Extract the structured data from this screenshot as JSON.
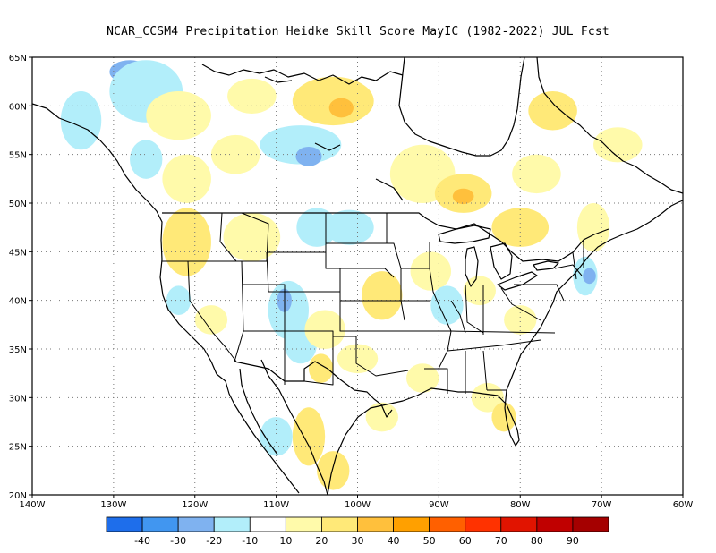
{
  "title": "NCAR_CCSM4  Precipitation Heidke Skill Score MayIC (1982-2022) JUL Fcst",
  "map": {
    "projection": "lat-lon",
    "lon_range": [
      -140,
      -60
    ],
    "lat_range": [
      20,
      65
    ],
    "gridlines": "dotted",
    "lon_ticks": [
      {
        "value": -140,
        "label": "140W"
      },
      {
        "value": -130,
        "label": "130W"
      },
      {
        "value": -120,
        "label": "120W"
      },
      {
        "value": -110,
        "label": "110W"
      },
      {
        "value": -100,
        "label": "100W"
      },
      {
        "value": -90,
        "label": "90W"
      },
      {
        "value": -80,
        "label": "80W"
      },
      {
        "value": -70,
        "label": "70W"
      },
      {
        "value": -60,
        "label": "60W"
      }
    ],
    "lat_ticks": [
      {
        "value": 65,
        "label": "65N"
      },
      {
        "value": 60,
        "label": "60N"
      },
      {
        "value": 55,
        "label": "55N"
      },
      {
        "value": 50,
        "label": "50N"
      },
      {
        "value": 45,
        "label": "45N"
      },
      {
        "value": 40,
        "label": "40N"
      },
      {
        "value": 35,
        "label": "35N"
      },
      {
        "value": 30,
        "label": "30N"
      },
      {
        "value": 25,
        "label": "25N"
      },
      {
        "value": 20,
        "label": "20N"
      }
    ],
    "patches": [
      {
        "lon": -128,
        "lat": 63.5,
        "rx": 2.5,
        "ry": 1.2,
        "color": "#7fb2f0"
      },
      {
        "lon": -126,
        "lat": 61.5,
        "rx": 4.5,
        "ry": 3.2,
        "color": "#b2eefa"
      },
      {
        "lon": -134,
        "lat": 58.5,
        "rx": 2.5,
        "ry": 3,
        "color": "#b2eefa"
      },
      {
        "lon": -122,
        "lat": 59,
        "rx": 4,
        "ry": 2.5,
        "color": "#fffaaa"
      },
      {
        "lon": -113,
        "lat": 61,
        "rx": 3,
        "ry": 1.8,
        "color": "#fffaaa"
      },
      {
        "lon": -103,
        "lat": 60.5,
        "rx": 5,
        "ry": 2.5,
        "color": "#ffe978"
      },
      {
        "lon": -102,
        "lat": 59.8,
        "rx": 1.5,
        "ry": 1,
        "color": "#ffc03c"
      },
      {
        "lon": -107,
        "lat": 56,
        "rx": 5,
        "ry": 2,
        "color": "#b2eefa"
      },
      {
        "lon": -106,
        "lat": 54.8,
        "rx": 1.6,
        "ry": 1,
        "color": "#7fb2f0"
      },
      {
        "lon": -115,
        "lat": 55,
        "rx": 3,
        "ry": 2,
        "color": "#fffaaa"
      },
      {
        "lon": -121,
        "lat": 52.5,
        "rx": 3,
        "ry": 2.5,
        "color": "#fffaaa"
      },
      {
        "lon": -126,
        "lat": 54.5,
        "rx": 2,
        "ry": 2,
        "color": "#b2eefa"
      },
      {
        "lon": -92,
        "lat": 53,
        "rx": 4,
        "ry": 3,
        "color": "#fffaaa"
      },
      {
        "lon": -87,
        "lat": 51,
        "rx": 3.5,
        "ry": 2,
        "color": "#ffe978"
      },
      {
        "lon": -87,
        "lat": 50.7,
        "rx": 1.3,
        "ry": 0.8,
        "color": "#ffc03c"
      },
      {
        "lon": -80,
        "lat": 47.5,
        "rx": 3.5,
        "ry": 2,
        "color": "#ffe978"
      },
      {
        "lon": -76,
        "lat": 59.5,
        "rx": 3,
        "ry": 2,
        "color": "#ffe978"
      },
      {
        "lon": -68,
        "lat": 56,
        "rx": 3,
        "ry": 1.8,
        "color": "#fffaaa"
      },
      {
        "lon": -78,
        "lat": 53,
        "rx": 3,
        "ry": 2,
        "color": "#fffaaa"
      },
      {
        "lon": -71,
        "lat": 47.5,
        "rx": 2,
        "ry": 2.5,
        "color": "#fffaaa"
      },
      {
        "lon": -121,
        "lat": 46,
        "rx": 3,
        "ry": 3.5,
        "color": "#ffe978"
      },
      {
        "lon": -113,
        "lat": 46.5,
        "rx": 3.5,
        "ry": 2.5,
        "color": "#fffaaa"
      },
      {
        "lon": -105,
        "lat": 47.5,
        "rx": 2.5,
        "ry": 2,
        "color": "#b2eefa"
      },
      {
        "lon": -101,
        "lat": 47.5,
        "rx": 3,
        "ry": 1.8,
        "color": "#b2eefa"
      },
      {
        "lon": -108.5,
        "lat": 39,
        "rx": 2.5,
        "ry": 3,
        "color": "#b2eefa"
      },
      {
        "lon": -109,
        "lat": 40,
        "rx": 0.9,
        "ry": 1.2,
        "color": "#7fb2f0"
      },
      {
        "lon": -107,
        "lat": 35.5,
        "rx": 2,
        "ry": 2,
        "color": "#b2eefa"
      },
      {
        "lon": -104.5,
        "lat": 33,
        "rx": 1.5,
        "ry": 1.5,
        "color": "#ffe978"
      },
      {
        "lon": -97,
        "lat": 40.5,
        "rx": 2.5,
        "ry": 2.5,
        "color": "#ffe978"
      },
      {
        "lon": -104,
        "lat": 37,
        "rx": 2.5,
        "ry": 2,
        "color": "#fffaaa"
      },
      {
        "lon": -100,
        "lat": 34,
        "rx": 2.5,
        "ry": 1.5,
        "color": "#fffaaa"
      },
      {
        "lon": -91,
        "lat": 43,
        "rx": 2.5,
        "ry": 2,
        "color": "#fffaaa"
      },
      {
        "lon": -89,
        "lat": 39.5,
        "rx": 2,
        "ry": 2,
        "color": "#b2eefa"
      },
      {
        "lon": -85,
        "lat": 41,
        "rx": 2,
        "ry": 1.5,
        "color": "#fffaaa"
      },
      {
        "lon": -80,
        "lat": 38,
        "rx": 2,
        "ry": 1.5,
        "color": "#fffaaa"
      },
      {
        "lon": -72,
        "lat": 42.5,
        "rx": 1.5,
        "ry": 2,
        "color": "#b2eefa"
      },
      {
        "lon": -71.5,
        "lat": 42.5,
        "rx": 0.8,
        "ry": 0.8,
        "color": "#7fb2f0"
      },
      {
        "lon": -84,
        "lat": 30,
        "rx": 2,
        "ry": 1.5,
        "color": "#fffaaa"
      },
      {
        "lon": -82,
        "lat": 28,
        "rx": 1.5,
        "ry": 1.5,
        "color": "#ffe978"
      },
      {
        "lon": -106,
        "lat": 26,
        "rx": 2,
        "ry": 3,
        "color": "#ffe978"
      },
      {
        "lon": -103,
        "lat": 22.5,
        "rx": 2,
        "ry": 2,
        "color": "#ffe978"
      },
      {
        "lon": -110,
        "lat": 26,
        "rx": 2,
        "ry": 2,
        "color": "#b2eefa"
      },
      {
        "lon": -118,
        "lat": 38,
        "rx": 2,
        "ry": 1.5,
        "color": "#fffaaa"
      },
      {
        "lon": -122,
        "lat": 40,
        "rx": 1.5,
        "ry": 1.5,
        "color": "#b2eefa"
      },
      {
        "lon": -92,
        "lat": 32,
        "rx": 2,
        "ry": 1.5,
        "color": "#fffaaa"
      },
      {
        "lon": -97,
        "lat": 28,
        "rx": 2,
        "ry": 1.5,
        "color": "#fffaaa"
      }
    ]
  },
  "colorbar": {
    "colors": [
      "#1e6eeb",
      "#4196f0",
      "#7fb2f0",
      "#b2eefa",
      "#ffffff",
      "#fffaaa",
      "#ffe978",
      "#ffc03c",
      "#ffa000",
      "#ff6000",
      "#ff3200",
      "#e11400",
      "#c00000",
      "#a50000"
    ],
    "labels": [
      "-40",
      "-30",
      "-20",
      "-10",
      "10",
      "20",
      "30",
      "40",
      "50",
      "60",
      "70",
      "80",
      "90"
    ]
  }
}
